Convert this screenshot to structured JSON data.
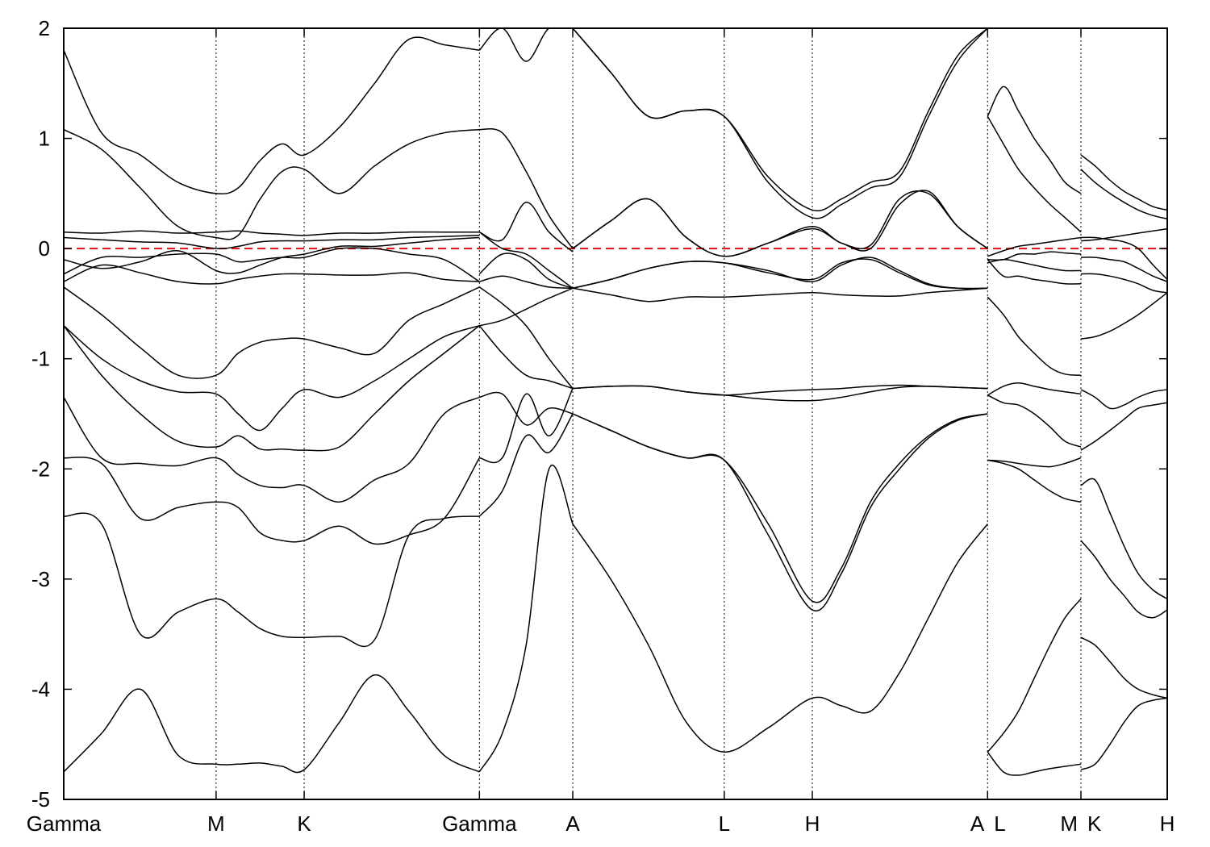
{
  "chart_data": {
    "type": "line",
    "title": "",
    "xlabel": "",
    "ylabel": "",
    "ylim": [
      -5,
      2
    ],
    "xlim": [
      0,
      12.53
    ],
    "grid": false,
    "y_ticks": [
      "2",
      "1",
      "0",
      "-1",
      "-2",
      "-3",
      "-4",
      "-5"
    ],
    "y_tick_values": [
      2,
      1,
      0,
      -1,
      -2,
      -3,
      -4,
      -5
    ],
    "k_points": [
      {
        "label": "Gamma",
        "x": 0
      },
      {
        "label": "M",
        "x": 1.73
      },
      {
        "label": "K",
        "x": 2.73
      },
      {
        "label": "Gamma",
        "x": 4.72
      },
      {
        "label": "A",
        "x": 5.78
      },
      {
        "label": "L",
        "x": 7.5
      },
      {
        "label": "H",
        "x": 8.5
      },
      {
        "label": "A",
        "x": 10.49
      },
      {
        "label": "L",
        "x": 10.49
      },
      {
        "label": "M",
        "x": 11.55
      },
      {
        "label": "K",
        "x": 11.55
      },
      {
        "label": "H",
        "x": 12.53
      }
    ],
    "reference_line": {
      "y": 0,
      "color": "#e01010",
      "style": "dashed"
    },
    "line_color": "#000000",
    "segments": [
      {
        "path": "Gamma-M-K-Gamma",
        "x": [
          0,
          0.43,
          0.87,
          1.3,
          1.73,
          1.98,
          2.23,
          2.48,
          2.73,
          3.13,
          3.53,
          3.92,
          4.32,
          4.72
        ],
        "bands": [
          [
            -4.75,
            -4.4,
            -4.0,
            -4.6,
            -4.68,
            -4.68,
            -4.67,
            -4.7,
            -4.73,
            -4.3,
            -3.87,
            -4.2,
            -4.6,
            -4.75
          ],
          [
            -2.43,
            -2.5,
            -3.5,
            -3.3,
            -3.18,
            -3.3,
            -3.45,
            -3.52,
            -3.53,
            -3.52,
            -3.55,
            -2.6,
            -2.45,
            -2.43
          ],
          [
            -1.9,
            -1.95,
            -2.45,
            -2.35,
            -2.3,
            -2.35,
            -2.58,
            -2.65,
            -2.65,
            -2.52,
            -2.68,
            -2.6,
            -2.45,
            -1.9
          ],
          [
            -1.35,
            -1.9,
            -1.95,
            -1.97,
            -1.9,
            -2.05,
            -2.15,
            -2.17,
            -2.15,
            -2.3,
            -2.1,
            -1.95,
            -1.5,
            -1.35
          ],
          [
            -0.7,
            -1.15,
            -1.5,
            -1.75,
            -1.8,
            -1.7,
            -1.82,
            -1.82,
            -1.83,
            -1.8,
            -1.5,
            -1.2,
            -0.95,
            -0.7
          ],
          [
            -0.7,
            -1.0,
            -1.2,
            -1.3,
            -1.32,
            -1.5,
            -1.65,
            -1.45,
            -1.28,
            -1.35,
            -1.2,
            -1.0,
            -0.8,
            -0.7
          ],
          [
            -0.35,
            -0.6,
            -0.9,
            -1.15,
            -1.15,
            -0.95,
            -0.85,
            -0.82,
            -0.82,
            -0.9,
            -0.95,
            -0.65,
            -0.5,
            -0.35
          ],
          [
            -0.3,
            -0.15,
            -0.22,
            -0.3,
            -0.32,
            -0.28,
            -0.25,
            -0.23,
            -0.23,
            -0.24,
            -0.24,
            -0.22,
            -0.28,
            -0.3
          ],
          [
            -0.23,
            -0.08,
            -0.08,
            -0.05,
            -0.05,
            -0.12,
            -0.1,
            -0.08,
            -0.08,
            0.0,
            0.0,
            -0.05,
            -0.1,
            -0.3
          ],
          [
            -0.1,
            -0.18,
            -0.12,
            -0.02,
            -0.2,
            -0.22,
            -0.15,
            -0.08,
            -0.05,
            0.02,
            0.02,
            0.05,
            0.08,
            0.1
          ],
          [
            0.1,
            0.08,
            0.06,
            0.05,
            0.0,
            0.02,
            0.06,
            0.07,
            0.07,
            0.08,
            0.08,
            0.1,
            0.11,
            0.12
          ],
          [
            0.15,
            0.14,
            0.16,
            0.14,
            0.15,
            0.16,
            0.14,
            0.13,
            0.12,
            0.14,
            0.14,
            0.15,
            0.15,
            0.15
          ],
          [
            1.08,
            0.9,
            0.55,
            0.2,
            0.1,
            0.12,
            0.45,
            0.7,
            0.72,
            0.5,
            0.75,
            0.95,
            1.05,
            1.08
          ],
          [
            1.8,
            1.05,
            0.85,
            0.6,
            0.5,
            0.55,
            0.8,
            0.95,
            0.85,
            1.1,
            1.5,
            1.9,
            1.85,
            1.8
          ]
        ]
      },
      {
        "path": "Gamma-A",
        "x": [
          4.72,
          4.98,
          5.25,
          5.51,
          5.78
        ],
        "bands": [
          [
            -4.75,
            -4.4,
            -3.6,
            -2.0,
            -2.5
          ],
          [
            -2.43,
            -2.2,
            -1.7,
            -1.85,
            -1.5
          ],
          [
            -1.9,
            -1.9,
            -1.32,
            -1.7,
            -1.27
          ],
          [
            -1.35,
            -1.32,
            -1.6,
            -1.45,
            -1.5
          ],
          [
            -0.7,
            -0.95,
            -1.15,
            -1.2,
            -1.27
          ],
          [
            -0.7,
            -0.65,
            -0.55,
            -0.45,
            -0.36
          ],
          [
            -0.35,
            -0.5,
            -0.7,
            -1.0,
            -1.27
          ],
          [
            -0.3,
            -0.25,
            -0.3,
            -0.35,
            -0.36
          ],
          [
            -0.23,
            -0.05,
            -0.1,
            -0.28,
            -0.36
          ],
          [
            0.15,
            0.08,
            0.42,
            0.15,
            -0.03
          ],
          [
            0.15,
            0.0,
            -0.05,
            -0.2,
            -0.36
          ],
          [
            1.08,
            1.05,
            0.7,
            0.3,
            0.0
          ],
          [
            1.8,
            2.0,
            1.7,
            2.0,
            2.0
          ]
        ]
      },
      {
        "path": "A-L-H-A",
        "x": [
          5.78,
          6.21,
          6.64,
          7.07,
          7.5,
          8.0,
          8.5,
          8.83,
          9.16,
          9.49,
          9.82,
          10.15,
          10.49
        ],
        "bands": [
          [
            -2.5,
            -3.0,
            -3.6,
            -4.3,
            -4.57,
            -4.35,
            -4.08,
            -4.15,
            -4.2,
            -3.85,
            -3.35,
            -2.85,
            -2.5
          ],
          [
            -1.5,
            -1.65,
            -1.8,
            -1.9,
            -1.92,
            -2.5,
            -3.2,
            -2.9,
            -2.3,
            -1.95,
            -1.7,
            -1.55,
            -1.5
          ],
          [
            -1.5,
            -1.65,
            -1.8,
            -1.9,
            -1.92,
            -2.6,
            -3.28,
            -2.95,
            -2.35,
            -2.0,
            -1.72,
            -1.56,
            -1.5
          ],
          [
            -1.27,
            -1.25,
            -1.25,
            -1.3,
            -1.33,
            -1.3,
            -1.28,
            -1.27,
            -1.25,
            -1.24,
            -1.25,
            -1.26,
            -1.27
          ],
          [
            -1.27,
            -1.25,
            -1.25,
            -1.3,
            -1.33,
            -1.37,
            -1.38,
            -1.35,
            -1.3,
            -1.26,
            -1.25,
            -1.26,
            -1.27
          ],
          [
            -0.36,
            -0.42,
            -0.48,
            -0.44,
            -0.44,
            -0.42,
            -0.4,
            -0.42,
            -0.43,
            -0.43,
            -0.4,
            -0.38,
            -0.36
          ],
          [
            -0.36,
            -0.28,
            -0.18,
            -0.12,
            -0.13,
            -0.2,
            -0.3,
            -0.15,
            -0.08,
            -0.2,
            -0.32,
            -0.36,
            -0.36
          ],
          [
            -0.36,
            -0.28,
            -0.18,
            -0.12,
            -0.13,
            -0.22,
            -0.28,
            -0.13,
            -0.1,
            -0.22,
            -0.33,
            -0.36,
            -0.36
          ],
          [
            0.0,
            0.25,
            0.45,
            0.1,
            -0.07,
            0.05,
            0.2,
            0.05,
            0.03,
            0.45,
            0.5,
            0.2,
            0.0
          ],
          [
            0.0,
            0.25,
            0.45,
            0.1,
            -0.07,
            0.05,
            0.18,
            0.05,
            0.0,
            0.4,
            0.52,
            0.2,
            0.0
          ],
          [
            2.0,
            1.6,
            1.2,
            1.25,
            1.2,
            0.6,
            0.28,
            0.4,
            0.55,
            0.65,
            1.2,
            1.7,
            2.0
          ],
          [
            2.0,
            1.6,
            1.2,
            1.25,
            1.2,
            0.65,
            0.35,
            0.45,
            0.6,
            0.7,
            1.25,
            1.75,
            2.0
          ]
        ]
      },
      {
        "path": "L-M",
        "x": [
          10.49,
          10.67,
          10.84,
          11.02,
          11.2,
          11.37,
          11.55
        ],
        "bands": [
          [
            -4.57,
            -4.4,
            -4.2,
            -3.9,
            -3.6,
            -3.35,
            -3.18
          ],
          [
            -4.57,
            -4.75,
            -4.78,
            -4.75,
            -4.72,
            -4.7,
            -4.68
          ],
          [
            -1.92,
            -1.95,
            -2.0,
            -2.1,
            -2.2,
            -2.27,
            -2.3
          ],
          [
            -1.92,
            -1.93,
            -1.95,
            -1.97,
            -1.98,
            -1.95,
            -1.9
          ],
          [
            -1.33,
            -1.4,
            -1.42,
            -1.5,
            -1.62,
            -1.75,
            -1.8
          ],
          [
            -1.33,
            -1.25,
            -1.22,
            -1.25,
            -1.28,
            -1.3,
            -1.32
          ],
          [
            -0.44,
            -0.6,
            -0.8,
            -0.95,
            -1.08,
            -1.14,
            -1.15
          ],
          [
            -0.1,
            -0.25,
            -0.25,
            -0.28,
            -0.3,
            -0.32,
            -0.32
          ],
          [
            -0.13,
            -0.1,
            -0.12,
            -0.15,
            -0.18,
            -0.2,
            -0.2
          ],
          [
            -0.1,
            -0.1,
            -0.05,
            -0.05,
            -0.03,
            -0.04,
            -0.05
          ],
          [
            -0.07,
            -0.02,
            0.02,
            0.04,
            0.06,
            0.08,
            0.1
          ],
          [
            1.2,
            0.95,
            0.72,
            0.55,
            0.4,
            0.28,
            0.15
          ],
          [
            1.2,
            1.47,
            1.25,
            1.0,
            0.8,
            0.6,
            0.5
          ]
        ]
      },
      {
        "path": "K-H",
        "x": [
          11.55,
          11.71,
          11.88,
          12.04,
          12.2,
          12.37,
          12.53
        ],
        "bands": [
          [
            -4.73,
            -4.68,
            -4.5,
            -4.3,
            -4.15,
            -4.1,
            -4.08
          ],
          [
            -3.53,
            -3.6,
            -3.75,
            -3.9,
            -4.0,
            -4.05,
            -4.08
          ],
          [
            -2.65,
            -2.8,
            -3.0,
            -3.15,
            -3.3,
            -3.35,
            -3.28
          ],
          [
            -2.15,
            -2.1,
            -2.4,
            -2.7,
            -2.95,
            -3.1,
            -3.18
          ],
          [
            -1.83,
            -1.75,
            -1.65,
            -1.55,
            -1.45,
            -1.42,
            -1.4
          ],
          [
            -1.28,
            -1.35,
            -1.45,
            -1.42,
            -1.35,
            -1.3,
            -1.28
          ],
          [
            -0.82,
            -0.8,
            -0.75,
            -0.68,
            -0.6,
            -0.5,
            -0.4
          ],
          [
            -0.23,
            -0.23,
            -0.25,
            -0.28,
            -0.32,
            -0.38,
            -0.4
          ],
          [
            -0.08,
            -0.08,
            -0.1,
            -0.12,
            -0.18,
            -0.25,
            -0.3
          ],
          [
            0.1,
            0.1,
            0.08,
            0.06,
            0.0,
            -0.15,
            -0.28
          ],
          [
            0.07,
            0.08,
            0.1,
            0.12,
            0.14,
            0.16,
            0.18
          ],
          [
            0.72,
            0.6,
            0.5,
            0.42,
            0.35,
            0.3,
            0.27
          ],
          [
            0.85,
            0.75,
            0.62,
            0.52,
            0.45,
            0.38,
            0.35
          ]
        ]
      }
    ]
  }
}
